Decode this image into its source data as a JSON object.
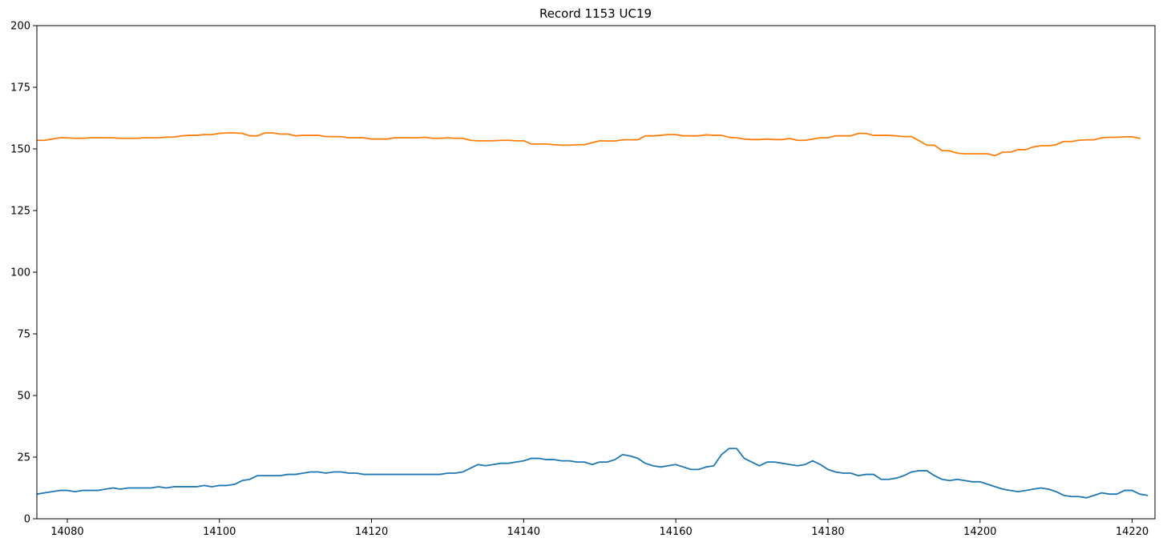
{
  "chart_data": {
    "type": "line",
    "title": "Record 1153 UC19",
    "xlabel": "",
    "ylabel": "",
    "xlim": [
      14076,
      14223
    ],
    "ylim": [
      0,
      200
    ],
    "x_ticks": [
      14080,
      14100,
      14120,
      14140,
      14160,
      14180,
      14200,
      14220
    ],
    "y_ticks": [
      0,
      25,
      50,
      75,
      100,
      125,
      150,
      175,
      200
    ],
    "grid": false,
    "legend": "none",
    "x_start": 14076,
    "x_step": 1,
    "series": [
      {
        "color": "#1f77b4",
        "values": [
          10,
          10.5,
          11,
          11.5,
          11.5,
          11,
          11.5,
          11.5,
          11.5,
          12,
          12.5,
          12,
          12.5,
          12.5,
          12.5,
          12.5,
          13,
          12.5,
          13,
          13,
          13,
          13,
          13.5,
          13,
          13.5,
          13.5,
          14,
          15.5,
          16,
          17.5,
          17.5,
          17.5,
          17.5,
          18,
          18,
          18.5,
          19,
          19,
          18.5,
          19,
          19,
          18.5,
          18.5,
          18,
          18,
          18,
          18,
          18,
          18,
          18,
          18,
          18,
          18,
          18,
          18.5,
          18.5,
          19,
          20.5,
          22,
          21.5,
          22,
          22.5,
          22.5,
          23,
          23.5,
          24.5,
          24.5,
          24,
          24,
          23.5,
          23.5,
          23,
          23,
          22,
          23,
          23,
          24,
          26,
          25.5,
          24.5,
          22.5,
          21.5,
          21,
          21.5,
          22,
          21,
          20,
          20,
          21,
          21.5,
          26,
          28.5,
          28.5,
          24.5,
          23,
          21.5,
          23,
          23,
          22.5,
          22,
          21.5,
          22,
          23.5,
          22,
          20,
          19,
          18.5,
          18.5,
          17.5,
          18,
          18,
          16,
          16,
          16.5,
          17.5,
          19,
          19.5,
          19.5,
          17.5,
          16,
          15.5,
          16,
          15.5,
          15,
          15,
          14,
          13,
          12,
          11.5,
          11,
          11.5,
          12,
          12.5,
          12,
          11,
          9.5,
          9,
          9,
          8.5,
          9.5,
          10.5,
          10,
          10,
          11.5,
          11.5,
          10,
          9.5
        ]
      },
      {
        "color": "#ff7f0e",
        "values": [
          153.5,
          153.5,
          154,
          154.5,
          154.5,
          154.3,
          154.3,
          154.5,
          154.5,
          154.5,
          154.5,
          154.3,
          154.3,
          154.3,
          154.5,
          154.5,
          154.5,
          154.8,
          154.8,
          155.3,
          155.5,
          155.5,
          155.8,
          155.8,
          156.3,
          156.5,
          156.5,
          156.3,
          155.3,
          155.3,
          156.5,
          156.5,
          156,
          156,
          155.3,
          155.5,
          155.5,
          155.5,
          155,
          155,
          155,
          154.5,
          154.5,
          154.5,
          154,
          154,
          154,
          154.5,
          154.5,
          154.5,
          154.5,
          154.7,
          154.3,
          154.3,
          154.5,
          154.3,
          154.3,
          153.5,
          153.3,
          153.3,
          153.3,
          153.5,
          153.5,
          153.3,
          153.3,
          152,
          152,
          152,
          151.7,
          151.5,
          151.5,
          151.7,
          151.7,
          152.5,
          153.3,
          153.2,
          153.2,
          153.7,
          153.7,
          153.7,
          155.3,
          155.3,
          155.5,
          155.8,
          155.8,
          155.3,
          155.3,
          155.3,
          155.7,
          155.5,
          155.5,
          154.7,
          154.5,
          154,
          153.8,
          153.8,
          154,
          153.8,
          153.8,
          154.2,
          153.5,
          153.5,
          154,
          154.5,
          154.5,
          155.3,
          155.3,
          155.3,
          156.3,
          156.3,
          155.5,
          155.5,
          155.5,
          155.3,
          155,
          155,
          153.3,
          151.5,
          151.5,
          149.3,
          149.2,
          148.3,
          148,
          148,
          148,
          148,
          147.3,
          148.7,
          148.7,
          149.7,
          149.7,
          150.8,
          151.3,
          151.3,
          151.7,
          153,
          153,
          153.5,
          153.7,
          153.7,
          154.5,
          154.7,
          154.7,
          154.9,
          154.9,
          154.3
        ]
      }
    ]
  }
}
